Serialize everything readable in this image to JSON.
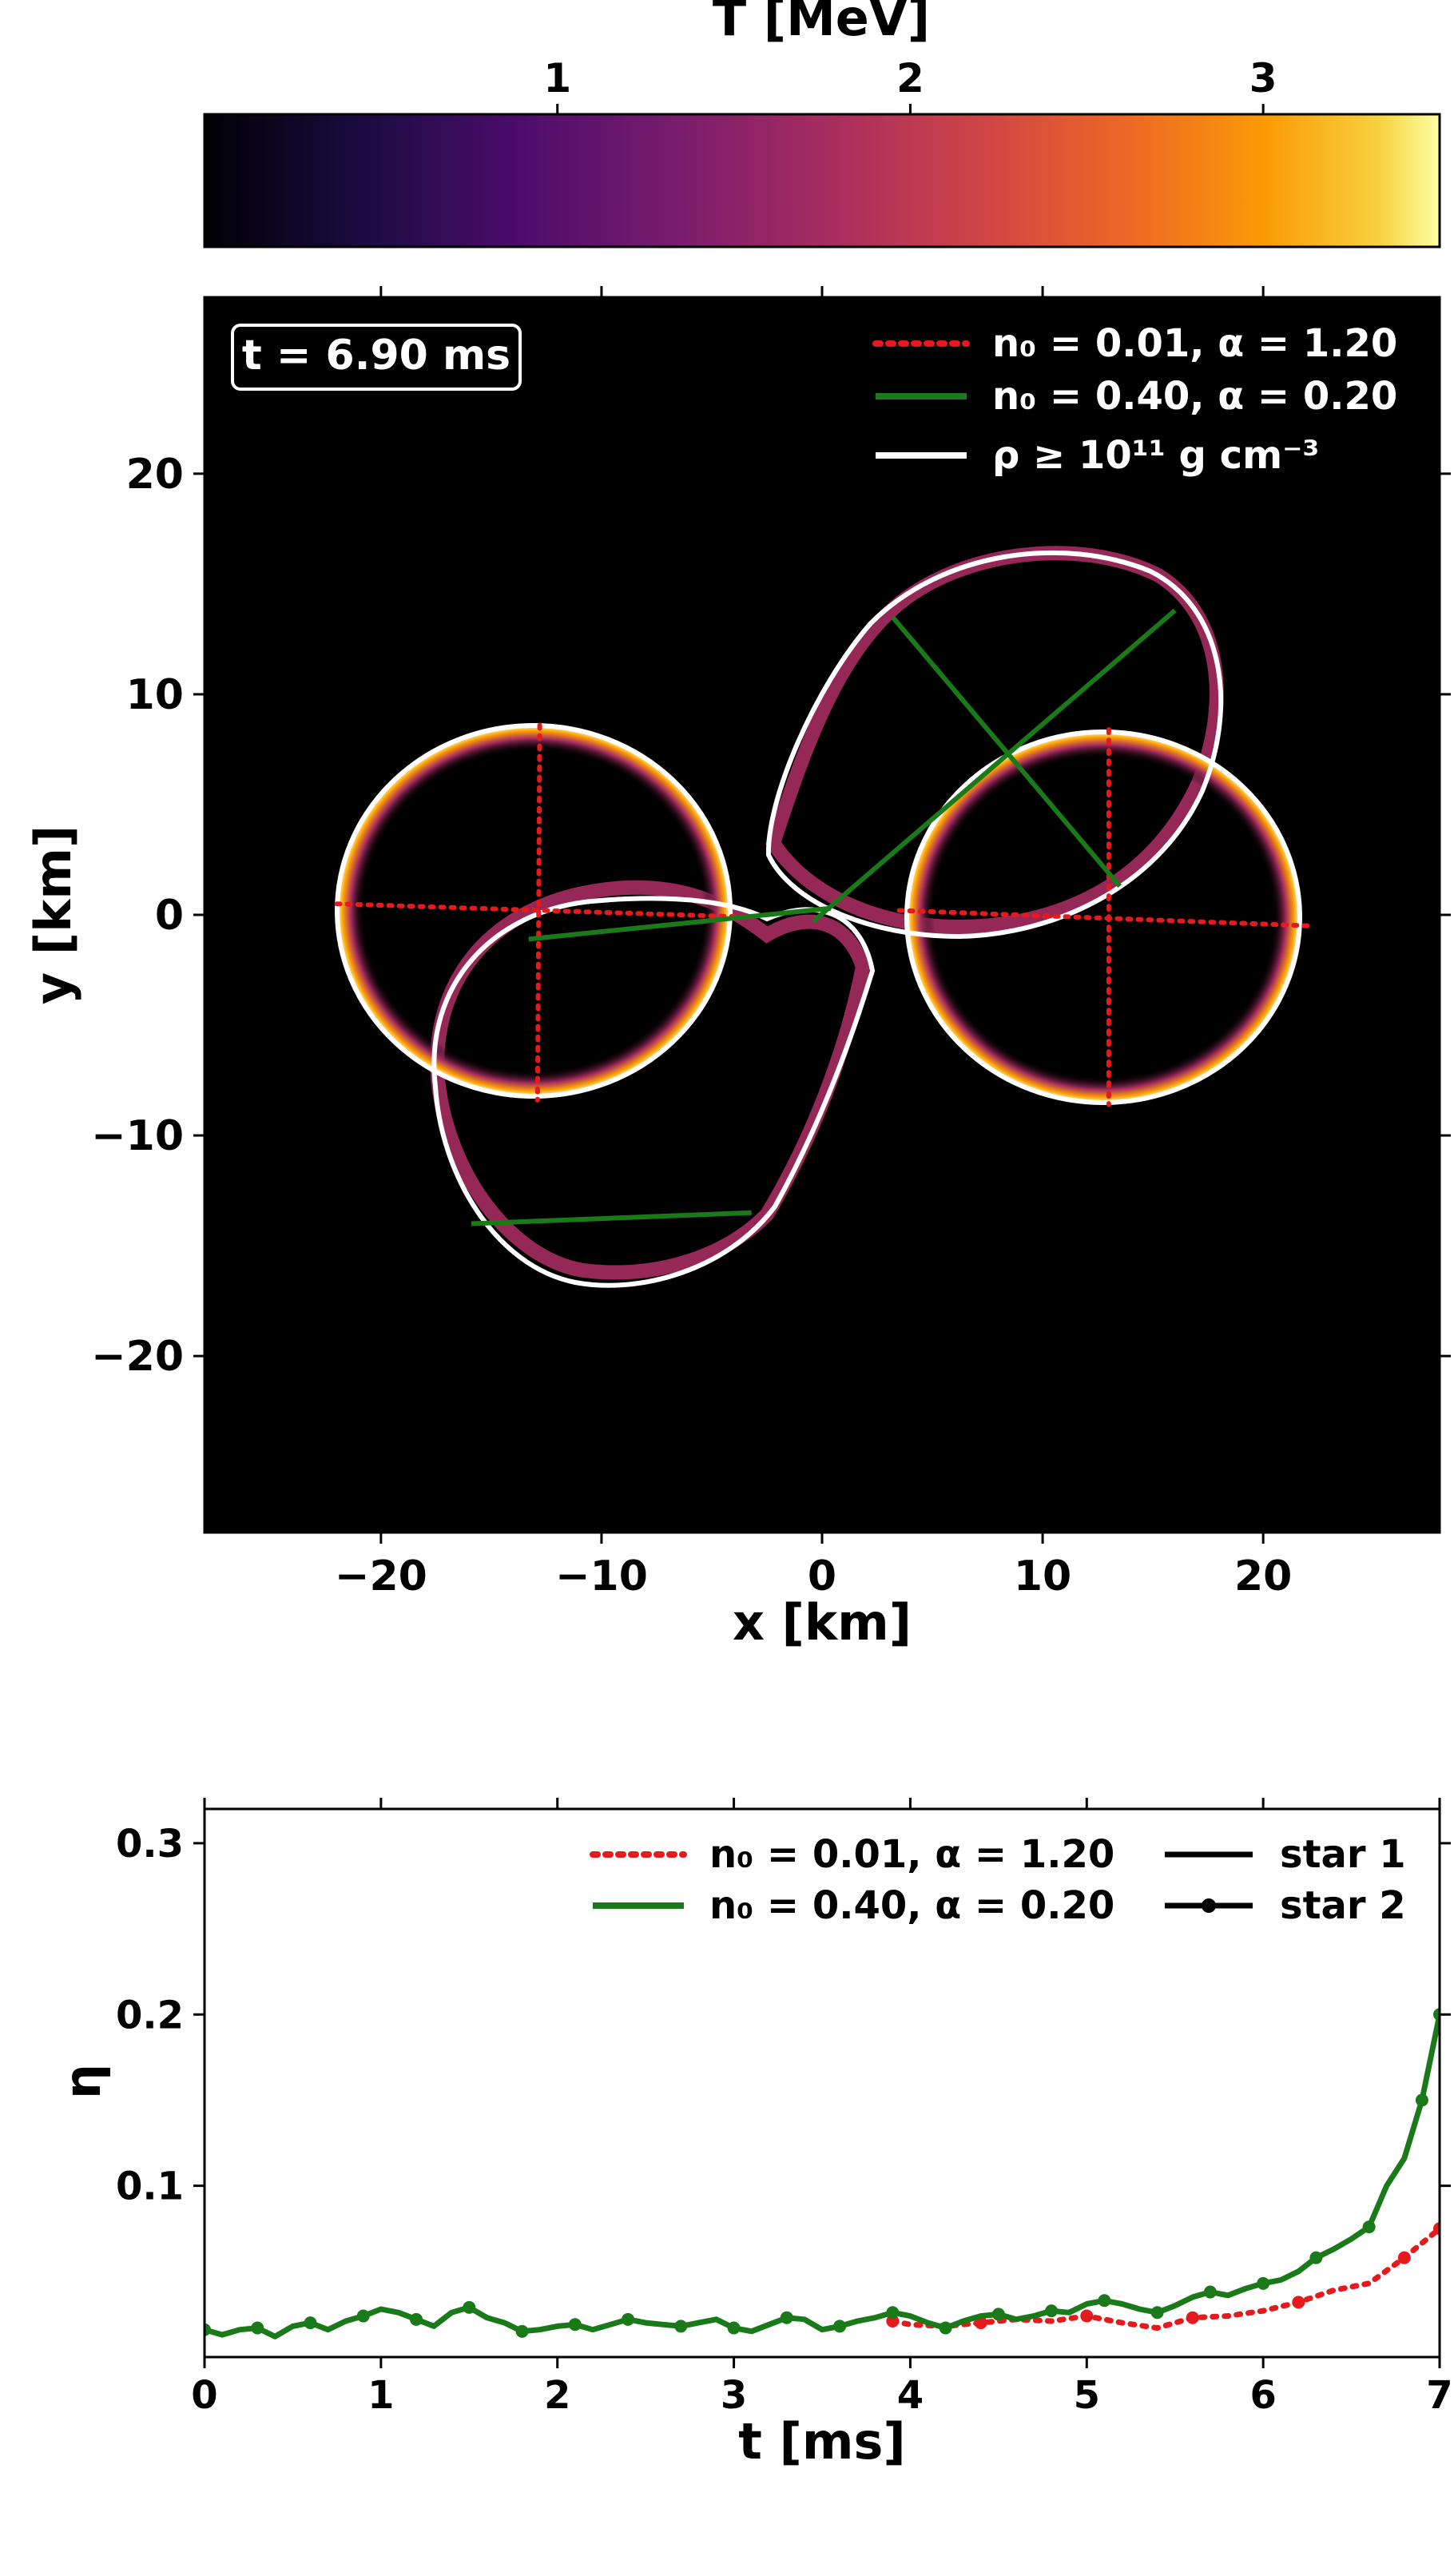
{
  "colorbar": {
    "label": "T [MeV]",
    "ticks": [
      1,
      2,
      3
    ],
    "range": [
      0,
      3.5
    ],
    "cmap": "inferno"
  },
  "chart_data": [
    {
      "type": "heatmap",
      "xlabel": "x [km]",
      "ylabel": "y [km]",
      "xlim": [
        -28,
        28
      ],
      "ylim": [
        -28,
        28
      ],
      "xticks": [
        -20,
        -10,
        0,
        10,
        20
      ],
      "yticks": [
        -20,
        -10,
        0,
        10,
        20
      ],
      "time_label": "t = 6.90 ms",
      "background": "#000000",
      "legend_position": "top-right",
      "legend": [
        {
          "label": "n₀ = 0.01,  α = 1.20",
          "color": "#e41a1c",
          "style": "dotted"
        },
        {
          "label": "n₀ = 0.40,  α = 0.20",
          "color": "#1a7a1a",
          "style": "solid"
        },
        {
          "label": "ρ ≥ 10¹¹ g cm⁻³",
          "color": "#ffffff",
          "style": "solid"
        }
      ],
      "stars_model_1": [
        {
          "center": [
            -12.7,
            0.2
          ],
          "radius_x": 9.3,
          "radius_y": 8.4,
          "axis_h": [
            [
              -22,
              0.5
            ],
            [
              -3.3,
              -0.1
            ]
          ],
          "axis_v": [
            [
              -12.8,
              8.6
            ],
            [
              -12.9,
              -8.4
            ]
          ]
        },
        {
          "center": [
            12.8,
            -0.3
          ],
          "radius_x": 9.3,
          "radius_y": 8.4,
          "axis_h": [
            [
              3.5,
              0.2
            ],
            [
              22.2,
              -0.5
            ]
          ],
          "axis_v": [
            [
              13,
              8.4
            ],
            [
              13,
              -8.6
            ]
          ]
        }
      ],
      "stars_model_2": [
        {
          "axis_major": [
            [
              -13.3,
              -1.1
            ],
            [
              0.4,
              0.3
            ]
          ],
          "axis_minor": [
            [
              -15.9,
              -14
            ],
            [
              -3.2,
              -13.5
            ]
          ]
        },
        {
          "axis_major": [
            [
              -0.4,
              -0.3
            ],
            [
              16,
              13.8
            ]
          ],
          "axis_minor": [
            [
              3.2,
              13.5
            ],
            [
              13.5,
              1.3
            ]
          ]
        }
      ]
    },
    {
      "type": "line",
      "xlabel": "t [ms]",
      "ylabel": "η",
      "xlim": [
        0,
        7
      ],
      "ylim": [
        0,
        0.32
      ],
      "xticks": [
        0,
        1,
        2,
        3,
        4,
        5,
        6,
        7
      ],
      "yticks": [
        0.1,
        0.2,
        0.3
      ],
      "legend_position": "top-right",
      "legend": [
        {
          "label": "n₀ = 0.01,  α = 1.20",
          "color": "#e41a1c",
          "style": "dotted"
        },
        {
          "label": "n₀ = 0.40,  α = 0.20",
          "color": "#1a7a1a",
          "style": "solid"
        },
        {
          "label": "star 1",
          "color": "#000000",
          "style": "solid"
        },
        {
          "label": "star 2",
          "color": "#000000",
          "style": "solid-dot"
        }
      ],
      "series": [
        {
          "name": "n₀ = 0.01,  α = 1.20",
          "color": "#e41a1c",
          "dashed": true,
          "x": [
            3.9,
            4.0,
            4.2,
            4.4,
            4.6,
            4.8,
            5.0,
            5.2,
            5.4,
            5.6,
            5.8,
            6.0,
            6.2,
            6.4,
            6.6,
            6.8,
            7.0
          ],
          "y": [
            0.021,
            0.019,
            0.018,
            0.02,
            0.022,
            0.021,
            0.024,
            0.02,
            0.017,
            0.023,
            0.024,
            0.027,
            0.032,
            0.039,
            0.043,
            0.058,
            0.075
          ]
        },
        {
          "name": "n₀ = 0.40,  α = 0.20",
          "color": "#1a7a1a",
          "x": [
            0.0,
            0.1,
            0.2,
            0.3,
            0.4,
            0.5,
            0.6,
            0.7,
            0.8,
            0.9,
            1.0,
            1.1,
            1.2,
            1.3,
            1.4,
            1.5,
            1.6,
            1.7,
            1.8,
            1.9,
            2.0,
            2.1,
            2.2,
            2.3,
            2.4,
            2.5,
            2.6,
            2.7,
            2.8,
            2.9,
            3.0,
            3.1,
            3.2,
            3.3,
            3.4,
            3.5,
            3.6,
            3.7,
            3.8,
            3.9,
            4.0,
            4.1,
            4.2,
            4.3,
            4.4,
            4.5,
            4.6,
            4.7,
            4.8,
            4.9,
            5.0,
            5.1,
            5.2,
            5.3,
            5.4,
            5.5,
            5.6,
            5.7,
            5.8,
            5.9,
            6.0,
            6.1,
            6.2,
            6.3,
            6.4,
            6.5,
            6.6,
            6.7,
            6.8,
            6.9,
            7.0
          ],
          "y": [
            0.016,
            0.013,
            0.016,
            0.017,
            0.012,
            0.018,
            0.02,
            0.016,
            0.021,
            0.024,
            0.028,
            0.026,
            0.022,
            0.018,
            0.026,
            0.029,
            0.023,
            0.02,
            0.015,
            0.016,
            0.018,
            0.019,
            0.016,
            0.019,
            0.022,
            0.02,
            0.019,
            0.018,
            0.02,
            0.022,
            0.017,
            0.015,
            0.019,
            0.023,
            0.022,
            0.016,
            0.018,
            0.021,
            0.023,
            0.026,
            0.024,
            0.02,
            0.017,
            0.021,
            0.024,
            0.025,
            0.022,
            0.024,
            0.027,
            0.026,
            0.031,
            0.033,
            0.031,
            0.028,
            0.026,
            0.03,
            0.035,
            0.038,
            0.036,
            0.04,
            0.043,
            0.045,
            0.05,
            0.058,
            0.063,
            0.069,
            0.076,
            0.1,
            0.116,
            0.15,
            0.2
          ]
        }
      ]
    }
  ]
}
